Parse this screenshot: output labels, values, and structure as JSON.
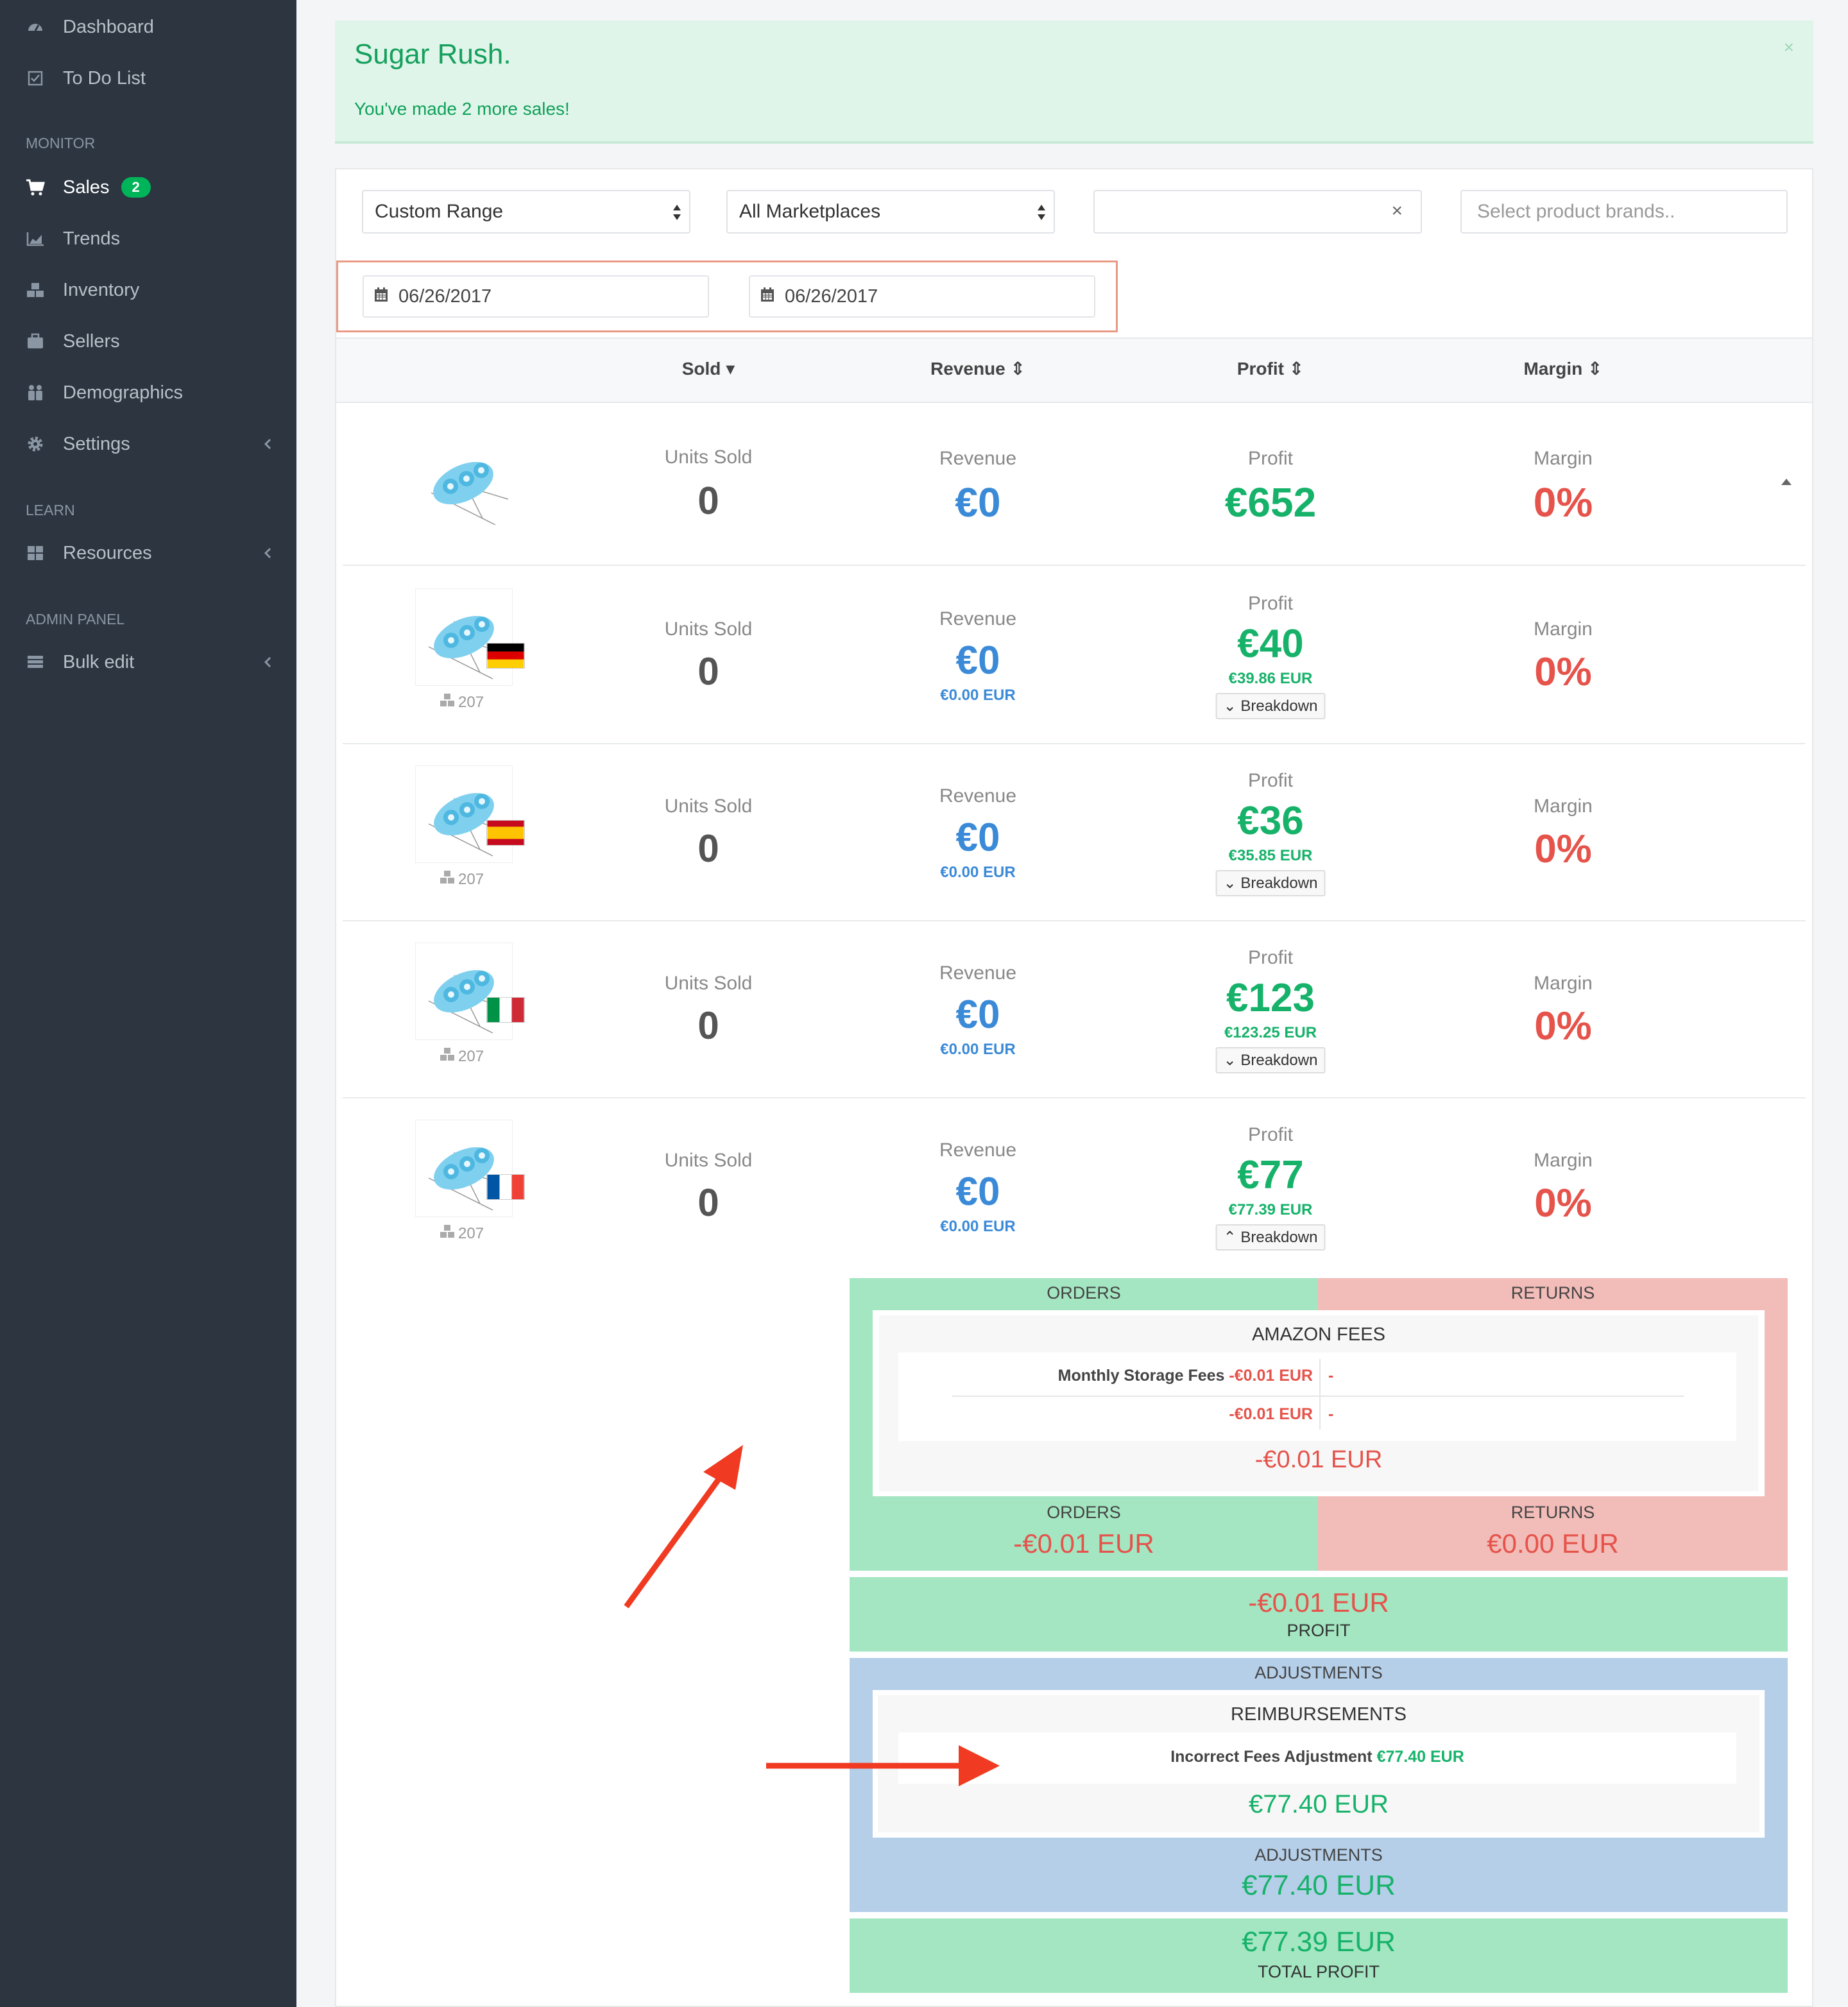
{
  "sidebar": {
    "items_top": [
      {
        "label": "Dashboard",
        "icon": "dashboard-icon"
      },
      {
        "label": "To Do List",
        "icon": "checkbox-icon"
      }
    ],
    "monitor_header": "MONITOR",
    "monitor_items": [
      {
        "label": "Sales",
        "icon": "cart-icon",
        "badge": "2"
      },
      {
        "label": "Trends",
        "icon": "area-chart-icon"
      },
      {
        "label": "Inventory",
        "icon": "cubes-icon"
      },
      {
        "label": "Sellers",
        "icon": "briefcase-icon"
      },
      {
        "label": "Demographics",
        "icon": "users-icon"
      },
      {
        "label": "Settings",
        "icon": "gear-icon"
      }
    ],
    "learn_header": "LEARN",
    "learn_items": [
      {
        "label": "Resources",
        "icon": "grid-icon"
      }
    ],
    "admin_header": "ADMIN PANEL",
    "admin_items": [
      {
        "label": "Bulk edit",
        "icon": "table-icon"
      }
    ]
  },
  "alert": {
    "title": "Sugar Rush.",
    "message": "You've made 2 more sales!",
    "close": "×"
  },
  "filters": {
    "range": "Custom Range",
    "marketplace": "All Marketplaces",
    "clear": "×",
    "brand_placeholder": "Select product brands..",
    "date_from": "06/26/2017",
    "date_to": "06/26/2017"
  },
  "columns": {
    "sold": "Sold",
    "revenue": "Revenue",
    "profit": "Profit",
    "margin": "Margin"
  },
  "labels": {
    "units_sold": "Units Sold",
    "revenue": "Revenue",
    "profit": "Profit",
    "margin": "Margin",
    "breakdown": "Breakdown"
  },
  "summary": {
    "units": "0",
    "revenue": "€0",
    "profit": "€652",
    "margin": "0%"
  },
  "rows": [
    {
      "flag": "de",
      "sku": "207",
      "units": "0",
      "revenue": "€0",
      "revenue_sub": "€0.00 EUR",
      "profit": "€40",
      "profit_sub": "€39.86 EUR",
      "margin": "0%"
    },
    {
      "flag": "es",
      "sku": "207",
      "units": "0",
      "revenue": "€0",
      "revenue_sub": "€0.00 EUR",
      "profit": "€36",
      "profit_sub": "€35.85 EUR",
      "margin": "0%"
    },
    {
      "flag": "it",
      "sku": "207",
      "units": "0",
      "revenue": "€0",
      "revenue_sub": "€0.00 EUR",
      "profit": "€123",
      "profit_sub": "€123.25 EUR",
      "margin": "0%"
    },
    {
      "flag": "fr",
      "sku": "207",
      "units": "0",
      "revenue": "€0",
      "revenue_sub": "€0.00 EUR",
      "profit": "€77",
      "profit_sub": "€77.39 EUR",
      "margin": "0%"
    }
  ],
  "breakdown": {
    "orders_header": "ORDERS",
    "returns_header": "RETURNS",
    "amazon_fees_title": "AMAZON FEES",
    "fee_label": "Monthly Storage Fees",
    "fee_value": "-€0.01 EUR",
    "fee_dash": "-",
    "fee_subtotal": "-€0.01 EUR",
    "fee_subtotal_dash": "-",
    "fees_total": "-€0.01 EUR",
    "orders_label": "ORDERS",
    "orders_value": "-€0.01 EUR",
    "returns_label": "RETURNS",
    "returns_value": "€0.00 EUR",
    "profit_value": "-€0.01 EUR",
    "profit_label": "PROFIT",
    "adjustments_header": "ADJUSTMENTS",
    "reimbursements_title": "REIMBURSEMENTS",
    "reimb_label": "Incorrect Fees Adjustment",
    "reimb_value": "€77.40 EUR",
    "reimb_total": "€77.40 EUR",
    "adjustments_label": "ADJUSTMENTS",
    "adjustments_value": "€77.40 EUR",
    "total_value": "€77.39 EUR",
    "total_label": "TOTAL PROFIT"
  },
  "colors": {
    "sidebar": "#2c3540",
    "green": "#17b26a",
    "blue": "#3b8ad8",
    "red": "#e5534b",
    "orders_bg": "#a3e6c1",
    "returns_bg": "#f2bcb8",
    "adjust_bg": "#b5cfe9"
  }
}
